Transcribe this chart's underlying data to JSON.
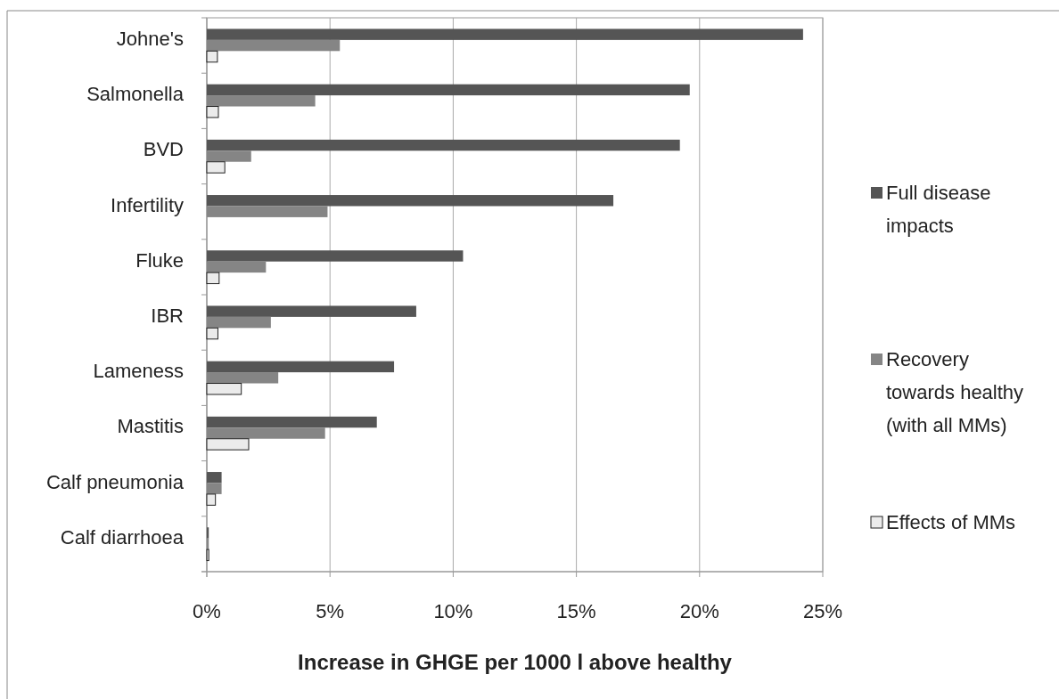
{
  "chart_data": {
    "type": "bar",
    "orientation": "horizontal",
    "xlabel": "Increase in GHGE per 1000 l above healthy",
    "categories": [
      "Johne's",
      "Salmonella",
      "BVD",
      "Infertility",
      "Fluke",
      "IBR",
      "Lameness",
      "Mastitis",
      "Calf pneumonia",
      "Calf diarrhoea"
    ],
    "series": [
      {
        "name": "Full disease impacts",
        "color": "#555555",
        "values": [
          24.2,
          19.6,
          19.2,
          16.5,
          10.4,
          8.5,
          7.6,
          6.9,
          0.6,
          0.08
        ]
      },
      {
        "name": "Recovery towards healthy (with all MMs)",
        "color": "#858585",
        "values": [
          5.4,
          4.4,
          1.8,
          4.9,
          2.4,
          2.6,
          2.9,
          4.8,
          0.6,
          0.08
        ]
      },
      {
        "name": "Effects of MMs",
        "color": "#ebebeb",
        "values": [
          0.43,
          0.47,
          0.73,
          null,
          0.5,
          0.45,
          1.4,
          1.7,
          0.35,
          0.08
        ]
      }
    ],
    "xlim": [
      0,
      25
    ],
    "xticks": [
      {
        "value": 0,
        "label": "0%"
      },
      {
        "value": 5,
        "label": "5%"
      },
      {
        "value": 10,
        "label": "10%"
      },
      {
        "value": 15,
        "label": "15%"
      },
      {
        "value": 20,
        "label": "20%"
      },
      {
        "value": 25,
        "label": "25%"
      }
    ],
    "grid": "x",
    "legend": "right"
  }
}
